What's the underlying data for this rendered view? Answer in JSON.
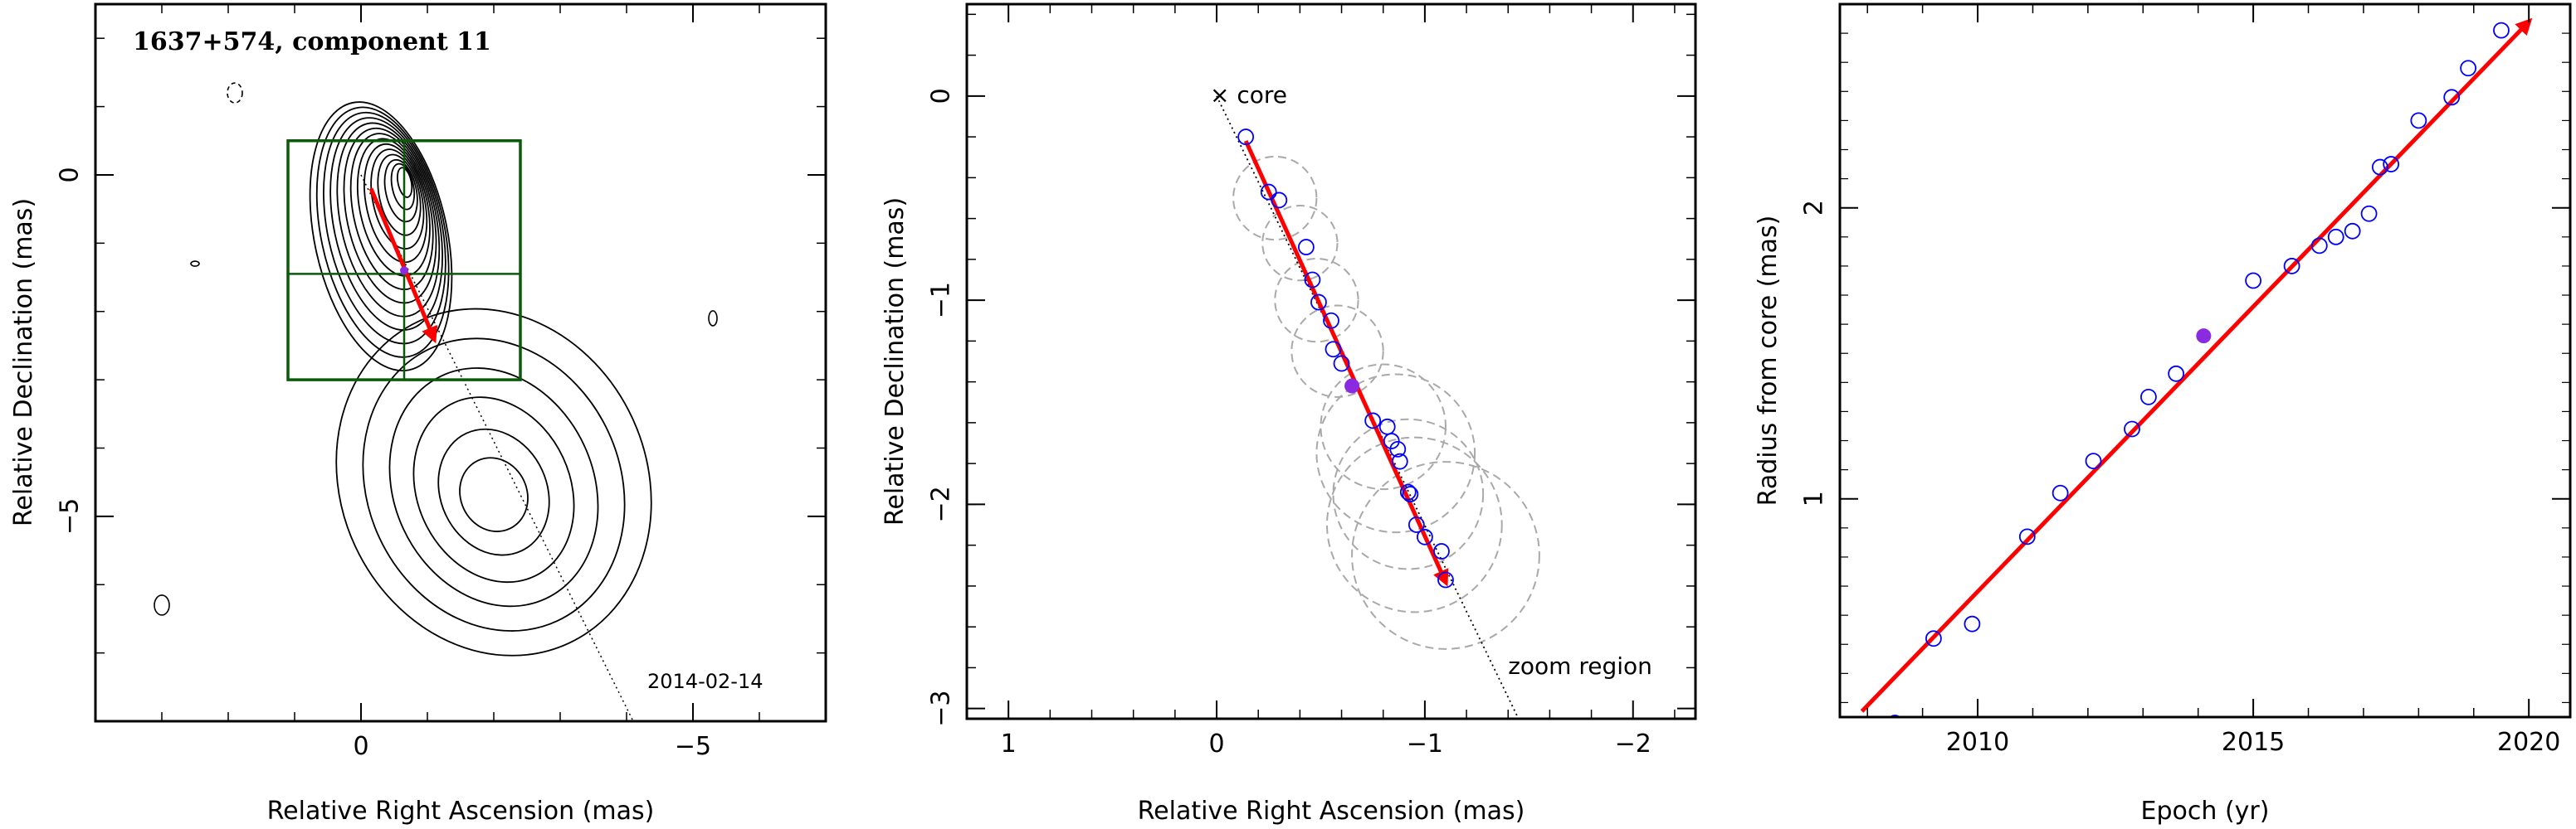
{
  "chart_data": [
    {
      "type": "contour",
      "title": "1637+574, component 11",
      "xlabel": "Relative Right Ascension (mas)",
      "ylabel": "Relative Declination (mas)",
      "date_label": "2014-02-14",
      "xlim": [
        4,
        -7
      ],
      "ylim": [
        -8,
        2.5
      ],
      "x_ticks": [
        0,
        -5
      ],
      "y_ticks": [
        0,
        -5
      ],
      "x_tick_labels": [
        "0",
        "−5"
      ],
      "y_tick_labels": [
        "0",
        "−5"
      ],
      "core_contours": {
        "center": [
          -0.3,
          -0.9
        ],
        "radii_x": [
          1.0,
          0.93,
          0.86,
          0.79,
          0.72,
          0.65,
          0.58,
          0.51,
          0.44,
          0.37,
          0.3,
          0.23,
          0.16,
          0.1
        ],
        "radii_y": [
          2.0,
          1.86,
          1.72,
          1.58,
          1.44,
          1.3,
          1.16,
          1.02,
          0.88,
          0.74,
          0.6,
          0.46,
          0.34,
          0.22
        ]
      },
      "jet_contours": {
        "center": [
          -2.0,
          -4.5
        ],
        "radii_x": [
          2.3,
          1.9,
          1.5,
          1.15,
          0.8,
          0.5
        ],
        "radii_y": [
          2.6,
          2.2,
          1.8,
          1.4,
          0.95,
          0.55
        ]
      },
      "zoom_box": {
        "x": [
          1.1,
          -2.4
        ],
        "y": [
          0.5,
          -3.0
        ],
        "divider_x": -0.65,
        "divider_y": -1.45
      },
      "track_line": {
        "x": [
          0,
          -4.1
        ],
        "y": [
          0,
          -8.0
        ]
      },
      "motion_vector": {
        "x": [
          -0.15,
          -1.1
        ],
        "y": [
          -0.2,
          -2.4
        ]
      },
      "highlight_point": {
        "x": -0.65,
        "y": -1.4
      }
    },
    {
      "type": "scatter",
      "xlabel": "Relative Right Ascension (mas)",
      "ylabel": "Relative Declination (mas)",
      "xlim": [
        1.2,
        -2.3
      ],
      "ylim": [
        -3.05,
        0.45
      ],
      "x_ticks": [
        1,
        0,
        -1,
        -2
      ],
      "y_ticks": [
        0,
        -1,
        -2,
        -3
      ],
      "x_tick_labels": [
        "1",
        "0",
        "−1",
        "−2"
      ],
      "y_tick_labels": [
        "0",
        "−1",
        "−2",
        "−3"
      ],
      "core_label": "× core",
      "core_position": [
        0,
        0
      ],
      "zoom_label": "zoom region",
      "points": [
        {
          "x": -0.14,
          "y": -0.2
        },
        {
          "x": -0.25,
          "y": -0.47
        },
        {
          "x": -0.3,
          "y": -0.51
        },
        {
          "x": -0.43,
          "y": -0.74
        },
        {
          "x": -0.46,
          "y": -0.9
        },
        {
          "x": -0.49,
          "y": -1.01
        },
        {
          "x": -0.55,
          "y": -1.1
        },
        {
          "x": -0.56,
          "y": -1.24
        },
        {
          "x": -0.6,
          "y": -1.31
        },
        {
          "x": -0.75,
          "y": -1.59
        },
        {
          "x": -0.82,
          "y": -1.62
        },
        {
          "x": -0.84,
          "y": -1.69
        },
        {
          "x": -0.87,
          "y": -1.73
        },
        {
          "x": -0.88,
          "y": -1.79
        },
        {
          "x": -0.92,
          "y": -1.94
        },
        {
          "x": -0.93,
          "y": -1.95
        },
        {
          "x": -0.96,
          "y": -2.1
        },
        {
          "x": -1.0,
          "y": -2.16
        },
        {
          "x": -1.08,
          "y": -2.23
        },
        {
          "x": -1.1,
          "y": -2.37
        }
      ],
      "highlight_point": {
        "x": -0.65,
        "y": -1.42
      },
      "component_sizes": [
        {
          "x": -0.28,
          "y": -0.5,
          "r": 0.2
        },
        {
          "x": -0.4,
          "y": -0.72,
          "r": 0.18
        },
        {
          "x": -0.48,
          "y": -1.0,
          "r": 0.2
        },
        {
          "x": -0.58,
          "y": -1.25,
          "r": 0.22
        },
        {
          "x": -0.8,
          "y": -1.62,
          "r": 0.3
        },
        {
          "x": -0.86,
          "y": -1.75,
          "r": 0.38
        },
        {
          "x": -0.92,
          "y": -1.95,
          "r": 0.36
        },
        {
          "x": -0.95,
          "y": -2.1,
          "r": 0.42
        },
        {
          "x": -1.1,
          "y": -2.25,
          "r": 0.45
        }
      ],
      "motion_vector": {
        "x": [
          -0.14,
          -1.1
        ],
        "y": [
          -0.22,
          -2.38
        ]
      },
      "track_line": {
        "x": [
          0,
          -1.45
        ],
        "y": [
          0,
          -3.05
        ]
      }
    },
    {
      "type": "scatter",
      "xlabel": "Epoch (yr)",
      "ylabel": "Radius from core (mas)",
      "xlim": [
        2007.5,
        2020.75
      ],
      "ylim": [
        0.25,
        2.7
      ],
      "x_ticks": [
        2010,
        2015,
        2020
      ],
      "y_ticks": [
        1,
        2
      ],
      "x_tick_labels": [
        "2010",
        "2015",
        "2020"
      ],
      "y_tick_labels": [
        "1",
        "2"
      ],
      "points": [
        {
          "x": 2008.5,
          "y": 0.23
        },
        {
          "x": 2009.2,
          "y": 0.52
        },
        {
          "x": 2009.9,
          "y": 0.57
        },
        {
          "x": 2010.9,
          "y": 0.87
        },
        {
          "x": 2011.5,
          "y": 1.02
        },
        {
          "x": 2012.1,
          "y": 1.13
        },
        {
          "x": 2012.8,
          "y": 1.24
        },
        {
          "x": 2013.1,
          "y": 1.35
        },
        {
          "x": 2013.6,
          "y": 1.43
        },
        {
          "x": 2015.0,
          "y": 1.75
        },
        {
          "x": 2015.7,
          "y": 1.8
        },
        {
          "x": 2016.2,
          "y": 1.87
        },
        {
          "x": 2016.5,
          "y": 1.9
        },
        {
          "x": 2016.8,
          "y": 1.92
        },
        {
          "x": 2017.1,
          "y": 1.98
        },
        {
          "x": 2017.3,
          "y": 2.14
        },
        {
          "x": 2017.5,
          "y": 2.15
        },
        {
          "x": 2018.0,
          "y": 2.3
        },
        {
          "x": 2018.6,
          "y": 2.38
        },
        {
          "x": 2018.9,
          "y": 2.48
        },
        {
          "x": 2019.5,
          "y": 2.61
        }
      ],
      "highlight_point": {
        "x": 2014.1,
        "y": 1.56
      },
      "fit_line": {
        "x": [
          2007.9,
          2020.0
        ],
        "y": [
          0.27,
          2.64
        ]
      }
    }
  ],
  "colors": {
    "contour": "#000000",
    "zoom_box": "#0a5a0a",
    "motion_vector": "#ff0000",
    "points": "#0000ff",
    "highlight": "#8a2be2",
    "size_circles": "#a9a9a9",
    "track": "#000000"
  }
}
